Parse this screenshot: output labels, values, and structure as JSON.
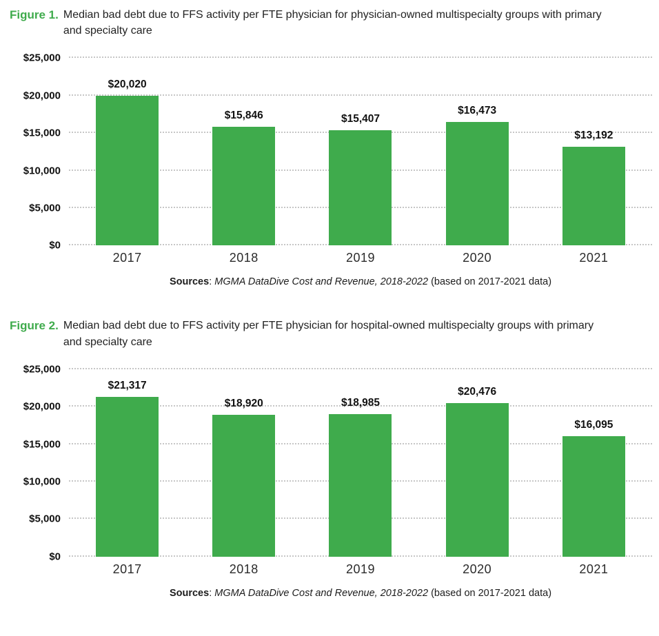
{
  "colors": {
    "bar_green": "#3fab4c",
    "figure_label_green": "#3fab4c",
    "gridline_gray": "#c6c6c6",
    "text_black": "#111111"
  },
  "figures": [
    {
      "label": "Figure 1.",
      "title": "Median bad debt due to FFS activity per FTE physician for physician-owned multispecialty groups with primary and specialty care",
      "source": {
        "bold": "Sources",
        "sep": ": ",
        "italic": "MGMA DataDive Cost and Revenue, 2018-2022",
        "rest": " (based on 2017-2021 data)"
      }
    },
    {
      "label": "Figure 2.",
      "title": "Median bad debt due to FFS activity per FTE physician for hospital-owned multispecialty groups with primary and specialty care",
      "source": {
        "bold": "Sources",
        "sep": ": ",
        "italic": "MGMA DataDive Cost and Revenue, 2018-2022",
        "rest": " (based on 2017-2021 data)"
      }
    }
  ],
  "chart_data": [
    {
      "type": "bar",
      "title": "Figure 1. Median bad debt due to FFS activity per FTE physician for physician-owned multispecialty groups with primary and specialty care",
      "categories": [
        "2017",
        "2018",
        "2019",
        "2020",
        "2021"
      ],
      "values": [
        20020,
        15846,
        15407,
        16473,
        13192
      ],
      "value_labels": [
        "$20,020",
        "$15,846",
        "$15,407",
        "$16,473",
        "$13,192"
      ],
      "xlabel": "",
      "ylabel": "",
      "ylim": [
        0,
        25000
      ],
      "yticks": [
        0,
        5000,
        10000,
        15000,
        20000,
        25000
      ],
      "ytick_labels": [
        "$0",
        "$5,000",
        "$10,000",
        "$15,000",
        "$20,000",
        "$25,000"
      ],
      "grid": "horizontal-dotted",
      "legend": "none",
      "bar_color": "#3fab4c"
    },
    {
      "type": "bar",
      "title": "Figure 2. Median bad debt due to FFS activity per FTE physician for hospital-owned multispecialty groups with primary and specialty care",
      "categories": [
        "2017",
        "2018",
        "2019",
        "2020",
        "2021"
      ],
      "values": [
        21317,
        18920,
        18985,
        20476,
        16095
      ],
      "value_labels": [
        "$21,317",
        "$18,920",
        "$18,985",
        "$20,476",
        "$16,095"
      ],
      "xlabel": "",
      "ylabel": "",
      "ylim": [
        0,
        25000
      ],
      "yticks": [
        0,
        5000,
        10000,
        15000,
        20000,
        25000
      ],
      "ytick_labels": [
        "$0",
        "$5,000",
        "$10,000",
        "$15,000",
        "$20,000",
        "$25,000"
      ],
      "grid": "horizontal-dotted",
      "legend": "none",
      "bar_color": "#3fab4c"
    }
  ]
}
